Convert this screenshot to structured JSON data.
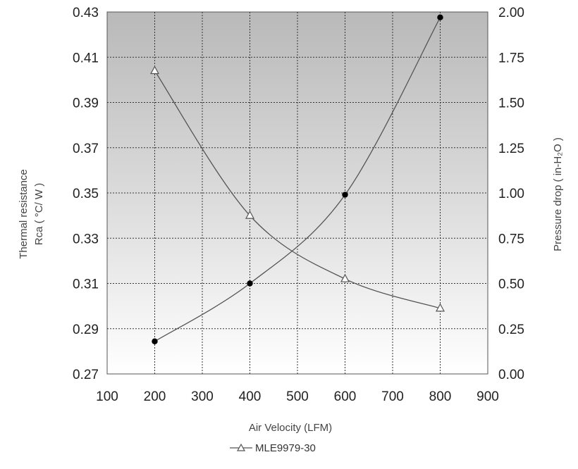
{
  "chart_data": {
    "type": "line",
    "xlabel": "Air Velocity (LFM)",
    "ylabel_left": [
      "Thermal resistance",
      "Rca ( °C/ W )"
    ],
    "ylabel_right": "Pressure drop ( in-H₂O )",
    "xlim": [
      100,
      900
    ],
    "xticks": [
      "100",
      "200",
      "300",
      "400",
      "500",
      "600",
      "700",
      "800",
      "900"
    ],
    "ylim_left": [
      0.27,
      0.43
    ],
    "yticks_left": [
      "0.27",
      "0.29",
      "0.31",
      "0.33",
      "0.35",
      "0.37",
      "0.39",
      "0.41",
      "0.43"
    ],
    "ylim_right": [
      0.0,
      2.0
    ],
    "yticks_right": [
      "0.00",
      "0.25",
      "0.50",
      "0.75",
      "1.00",
      "1.25",
      "1.50",
      "1.75",
      "2.00"
    ],
    "grid": true,
    "background": "gradient gray to white",
    "legend": {
      "placement": "bottom-center",
      "label": "MLE9979-30"
    },
    "series": [
      {
        "axis": "left",
        "marker": "triangle",
        "x": [
          200,
          400,
          600,
          800
        ],
        "values": [
          0.404,
          0.34,
          0.312,
          0.299
        ]
      },
      {
        "axis": "right",
        "marker": "filled-circle",
        "x": [
          200,
          400,
          600,
          800
        ],
        "values": [
          0.18,
          0.5,
          0.99,
          1.97
        ]
      }
    ]
  }
}
